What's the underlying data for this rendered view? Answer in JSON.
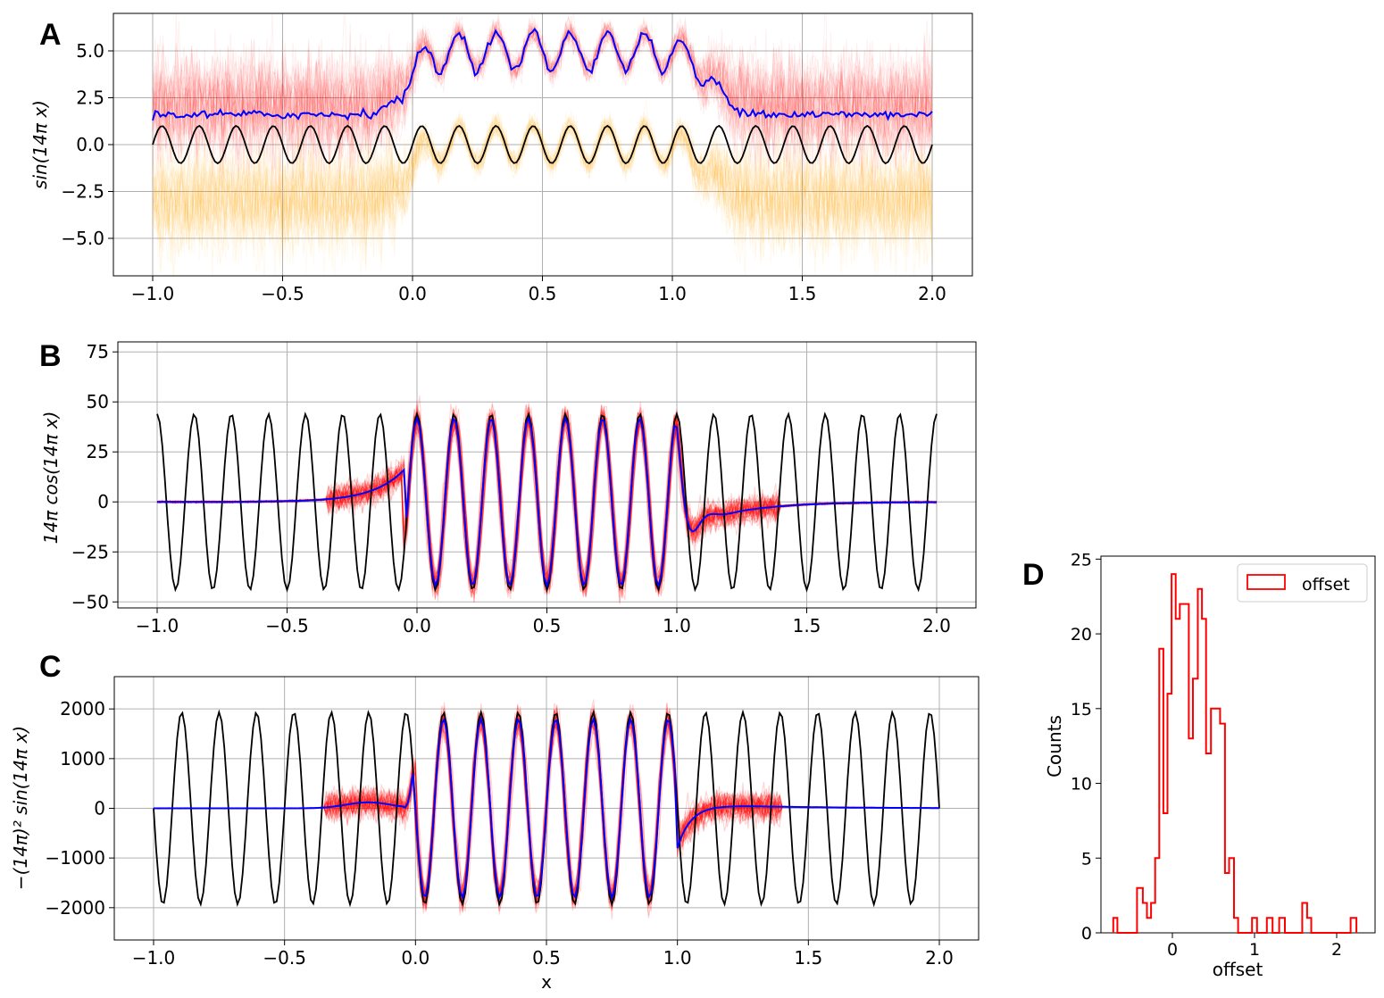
{
  "chart_data": [
    {
      "panel": "A",
      "type": "line",
      "ylabel": "sin(14π x)",
      "xlabel": "",
      "xlim": [
        -1.0,
        2.0
      ],
      "ylim": [
        -7.0,
        7.0
      ],
      "grid": true,
      "xticks": [
        "−1.0",
        "−0.5",
        "0.0",
        "0.5",
        "1.0",
        "1.5",
        "2.0"
      ],
      "yticks": [
        "5.0",
        "2.5",
        "0.0",
        "−2.5",
        "−5.0"
      ],
      "series": [
        {
          "kind": "truth",
          "color": "#000000",
          "function": "sin",
          "amplitude": 1,
          "offset": 0
        },
        {
          "kind": "samples-lower",
          "color": "#ffa500",
          "outside_mean": -3.0,
          "inside_mean": 0.0,
          "spread": 1.4
        },
        {
          "kind": "samples-upper",
          "color": "#ff0000",
          "outside_mean": 2.0,
          "inside_mean": 5.0,
          "spread": 1.4
        },
        {
          "kind": "mean",
          "color": "#0000ff",
          "outside_mean": 1.6,
          "inside_mean": 5.0,
          "amplitude": 1
        }
      ]
    },
    {
      "panel": "B",
      "type": "line",
      "ylabel": "14π cos(14π x)",
      "xlabel": "",
      "xlim": [
        -1.0,
        2.0
      ],
      "ylim": [
        -53,
        80
      ],
      "grid": true,
      "xticks": [
        "−1.0",
        "−0.5",
        "0.0",
        "0.5",
        "1.0",
        "1.5",
        "2.0"
      ],
      "yticks": [
        "75",
        "50",
        "25",
        "0",
        "−25",
        "−50"
      ],
      "series": [
        {
          "kind": "truth",
          "color": "#000000",
          "function": "cos",
          "amplitude": 43.98
        },
        {
          "kind": "samples",
          "color": "#ff0000"
        },
        {
          "kind": "mean",
          "color": "#0000ff"
        }
      ]
    },
    {
      "panel": "C",
      "type": "line",
      "ylabel": "−(14π)² sin(14π x)",
      "xlabel": "x",
      "xlim": [
        -1.0,
        2.0
      ],
      "ylim": [
        -2650,
        2650
      ],
      "grid": true,
      "xticks": [
        "−1.0",
        "−0.5",
        "0.0",
        "0.5",
        "1.0",
        "1.5",
        "2.0"
      ],
      "yticks": [
        "2000",
        "1000",
        "0",
        "−1000",
        "−2000"
      ],
      "series": [
        {
          "kind": "truth",
          "color": "#000000",
          "function": "-sin",
          "amplitude": 1934.4
        },
        {
          "kind": "samples",
          "color": "#ff0000"
        },
        {
          "kind": "mean",
          "color": "#0000ff"
        }
      ]
    },
    {
      "panel": "D",
      "type": "bar",
      "xlabel": "offset",
      "ylabel": "Counts",
      "xlim": [
        -0.8,
        2.35
      ],
      "ylim": [
        0,
        25.2
      ],
      "grid": false,
      "legend": {
        "position": "top-right",
        "label": "offset"
      },
      "xticks": [
        "0",
        "1",
        "2"
      ],
      "yticks": [
        "25",
        "20",
        "15",
        "10",
        "5",
        "0"
      ],
      "bins": [
        {
          "x0": -0.72,
          "x1": -0.67,
          "count": 1
        },
        {
          "x0": -0.67,
          "x1": -0.43,
          "count": 0
        },
        {
          "x0": -0.43,
          "x1": -0.36,
          "count": 3
        },
        {
          "x0": -0.36,
          "x1": -0.31,
          "count": 2
        },
        {
          "x0": -0.31,
          "x1": -0.26,
          "count": 1
        },
        {
          "x0": -0.26,
          "x1": -0.21,
          "count": 2
        },
        {
          "x0": -0.21,
          "x1": -0.16,
          "count": 5
        },
        {
          "x0": -0.16,
          "x1": -0.11,
          "count": 19
        },
        {
          "x0": -0.11,
          "x1": -0.06,
          "count": 8
        },
        {
          "x0": -0.06,
          "x1": -0.01,
          "count": 16
        },
        {
          "x0": -0.01,
          "x1": 0.04,
          "count": 24
        },
        {
          "x0": 0.04,
          "x1": 0.09,
          "count": 21
        },
        {
          "x0": 0.09,
          "x1": 0.15,
          "count": 22
        },
        {
          "x0": 0.15,
          "x1": 0.2,
          "count": 22
        },
        {
          "x0": 0.2,
          "x1": 0.25,
          "count": 13
        },
        {
          "x0": 0.25,
          "x1": 0.31,
          "count": 17
        },
        {
          "x0": 0.31,
          "x1": 0.36,
          "count": 23
        },
        {
          "x0": 0.36,
          "x1": 0.41,
          "count": 21
        },
        {
          "x0": 0.41,
          "x1": 0.47,
          "count": 12
        },
        {
          "x0": 0.47,
          "x1": 0.52,
          "count": 15
        },
        {
          "x0": 0.52,
          "x1": 0.58,
          "count": 15
        },
        {
          "x0": 0.58,
          "x1": 0.64,
          "count": 14
        },
        {
          "x0": 0.64,
          "x1": 0.69,
          "count": 4
        },
        {
          "x0": 0.69,
          "x1": 0.75,
          "count": 5
        },
        {
          "x0": 0.75,
          "x1": 0.8,
          "count": 1
        },
        {
          "x0": 0.8,
          "x1": 0.97,
          "count": 0
        },
        {
          "x0": 0.97,
          "x1": 1.03,
          "count": 1
        },
        {
          "x0": 1.03,
          "x1": 1.15,
          "count": 0
        },
        {
          "x0": 1.15,
          "x1": 1.22,
          "count": 1
        },
        {
          "x0": 1.22,
          "x1": 1.3,
          "count": 0
        },
        {
          "x0": 1.3,
          "x1": 1.37,
          "count": 1
        },
        {
          "x0": 1.37,
          "x1": 1.58,
          "count": 0
        },
        {
          "x0": 1.58,
          "x1": 1.64,
          "count": 2
        },
        {
          "x0": 1.64,
          "x1": 1.69,
          "count": 1
        },
        {
          "x0": 1.69,
          "x1": 2.17,
          "count": 0
        },
        {
          "x0": 2.17,
          "x1": 2.24,
          "count": 1
        }
      ]
    }
  ],
  "panels": {
    "a": "A",
    "b": "B",
    "c": "C",
    "d": "D"
  },
  "colors": {
    "samples_red": "#ff0000",
    "samples_orange": "#ffa500",
    "mean": "#0000ff",
    "truth": "#000000",
    "grid": "#b0b0b0"
  }
}
